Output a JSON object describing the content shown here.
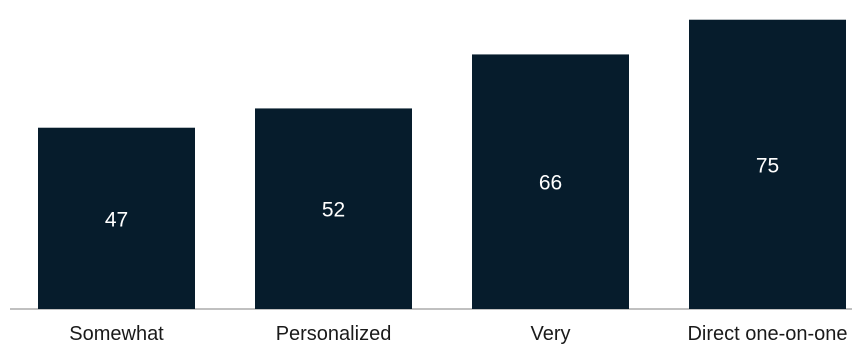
{
  "colors": {
    "bar": "#061c2c",
    "bar_label": "#ffffff",
    "axis_line": "#9a9a9a",
    "category_label": "#1a1a1a",
    "background": "#ffffff"
  },
  "chart_data": {
    "type": "bar",
    "categories": [
      "Somewhat",
      "Personalized",
      "Very",
      "Direct one-on-one"
    ],
    "values": [
      47,
      52,
      66,
      75
    ],
    "data_labels": [
      "47",
      "52",
      "66",
      "75"
    ],
    "title": "",
    "xlabel": "",
    "ylabel": "",
    "ylim": [
      0,
      77
    ],
    "grid": false,
    "legend": "none",
    "y_axis_visible": false
  }
}
